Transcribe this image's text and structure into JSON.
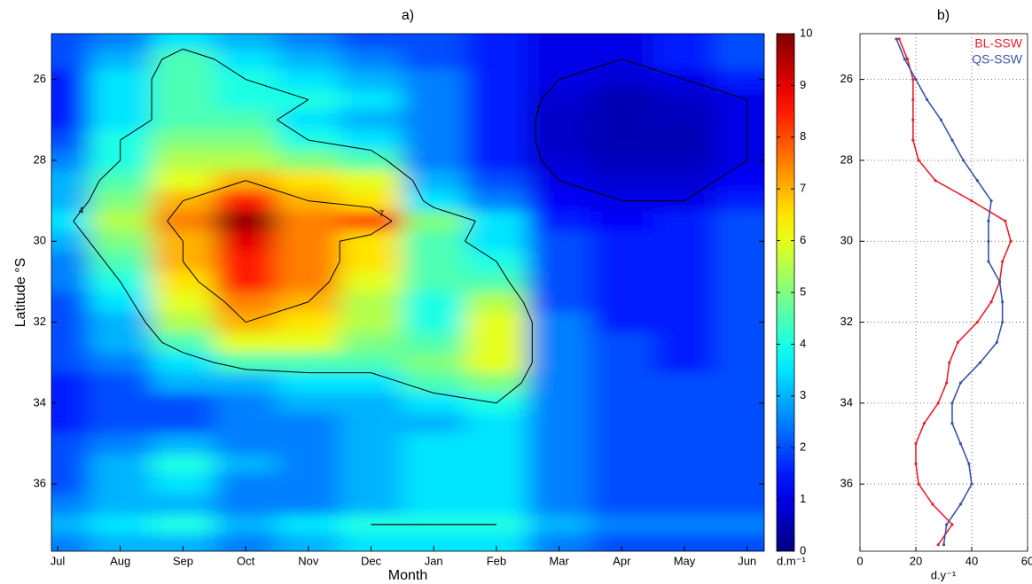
{
  "chart_data": [
    {
      "type": "heatmap",
      "title": "a)",
      "x_label": "Month",
      "y_label": "Latitude °S",
      "categories": [
        "Jul",
        "Aug",
        "Sep",
        "Oct",
        "Nov",
        "Dec",
        "Jan",
        "Feb",
        "Mar",
        "Apr",
        "May",
        "Jun"
      ],
      "y": [
        25,
        25.5,
        26,
        26.5,
        27,
        27.5,
        28,
        28.5,
        29,
        29.5,
        30,
        30.5,
        31,
        31.5,
        32,
        32.5,
        33,
        33.5,
        34,
        34.5,
        35,
        35.5,
        36,
        36.5,
        37,
        37.5
      ],
      "z": [
        [
          2,
          2.5,
          3.5,
          3,
          2.5,
          2,
          2,
          1.5,
          1,
          1,
          1.5,
          2
        ],
        [
          2,
          3,
          4.5,
          3.5,
          3,
          2.5,
          2,
          1.5,
          1,
          1,
          1.5,
          2
        ],
        [
          1.5,
          3.5,
          4.5,
          4,
          3.5,
          3,
          2.5,
          1.5,
          1,
          0.8,
          1,
          1.5
        ],
        [
          1.5,
          3.5,
          4.5,
          4,
          4,
          3.5,
          2.5,
          1.5,
          0.8,
          0.5,
          0.7,
          1
        ],
        [
          1.5,
          3.5,
          4.5,
          4.5,
          3.5,
          3,
          2.5,
          1.5,
          0.7,
          0.5,
          0.6,
          1
        ],
        [
          2,
          4,
          5,
          5,
          4,
          3.5,
          2.5,
          1.5,
          0.7,
          0.5,
          0.5,
          1
        ],
        [
          2.5,
          4,
          5.5,
          5.5,
          5,
          4.5,
          2.5,
          1.5,
          0.8,
          0.6,
          0.6,
          1
        ],
        [
          3,
          4.5,
          6,
          7,
          6.5,
          6,
          3,
          2,
          1,
          0.8,
          0.8,
          1.2
        ],
        [
          3,
          5,
          7,
          8.5,
          7,
          6.5,
          3.5,
          2.5,
          1.2,
          1,
          1,
          1.5
        ],
        [
          3.5,
          5.5,
          7.5,
          9.8,
          7.5,
          8,
          5,
          3.5,
          1.5,
          1.2,
          1.5,
          2
        ],
        [
          3,
          5,
          7,
          9,
          7.5,
          6.5,
          4.5,
          3.5,
          2,
          1.5,
          1.5,
          2
        ],
        [
          2.5,
          4.5,
          7,
          8.5,
          7.5,
          6.5,
          4.5,
          4,
          2,
          1.5,
          1.5,
          2
        ],
        [
          2.5,
          4,
          6.5,
          8.5,
          7.5,
          6,
          4.5,
          4.5,
          2,
          1.5,
          1.5,
          2
        ],
        [
          2,
          3.5,
          6,
          7.5,
          7,
          5.5,
          4,
          5.5,
          2,
          1.5,
          1.5,
          2
        ],
        [
          2,
          3,
          5.5,
          7,
          6.5,
          5.5,
          4,
          6,
          2.5,
          1.5,
          1.5,
          2
        ],
        [
          2,
          3,
          4.5,
          6,
          6,
          5,
          4.5,
          6,
          2.5,
          2,
          1.5,
          2
        ],
        [
          2,
          2.5,
          3.5,
          4.5,
          4.5,
          4.5,
          5,
          6,
          2.5,
          2,
          1.5,
          2
        ],
        [
          1.5,
          2,
          3,
          3,
          3.5,
          3.5,
          4.5,
          5,
          2.5,
          2,
          2,
          2
        ],
        [
          1.5,
          2,
          2,
          2.5,
          3,
          3,
          3.5,
          4,
          2.5,
          2,
          2,
          2
        ],
        [
          1.5,
          2,
          2,
          2.5,
          2.5,
          3,
          3,
          3.5,
          2.5,
          2,
          2,
          2
        ],
        [
          2,
          2.5,
          3,
          2.5,
          2.5,
          3,
          3.5,
          3.5,
          2.5,
          2,
          2,
          2
        ],
        [
          2,
          3,
          4,
          3,
          2.5,
          3,
          3.5,
          3.5,
          2.5,
          2,
          2,
          2
        ],
        [
          2,
          3,
          3.5,
          2.5,
          2.5,
          3,
          3.5,
          3.5,
          2.5,
          2,
          2,
          2
        ],
        [
          2.5,
          3,
          3,
          2.5,
          2.5,
          3,
          3.5,
          3.5,
          2.5,
          2,
          2,
          2
        ],
        [
          3,
          3.5,
          4,
          3,
          3.5,
          4,
          4,
          4,
          3,
          2.5,
          2.5,
          2.5
        ],
        [
          2.5,
          3,
          3,
          2.5,
          3,
          3.5,
          3.5,
          3.5,
          2.5,
          2,
          2,
          2
        ]
      ],
      "zlim": [
        0,
        10
      ],
      "zticks": [
        0,
        1,
        2,
        3,
        4,
        5,
        6,
        7,
        8,
        9,
        10
      ],
      "colorbar_label": "d.m⁻¹",
      "colormap": "jet",
      "contour_levels": [
        1,
        4,
        7
      ],
      "contour_color": "#000000",
      "ylim": [
        24.87,
        37.66
      ],
      "yticks": [
        26,
        28,
        30,
        32,
        34,
        36
      ]
    },
    {
      "type": "line",
      "orientation": "horizontal",
      "title": "b)",
      "x_label": "d.y⁻¹",
      "y": [
        25,
        25.5,
        26,
        26.5,
        27,
        27.5,
        28,
        28.5,
        29,
        29.5,
        30,
        30.5,
        31,
        31.5,
        32,
        32.5,
        33,
        33.5,
        34,
        34.5,
        35,
        35.5,
        36,
        36.5,
        37,
        37.5
      ],
      "series": [
        {
          "name": "BL-SSW",
          "color": "#e8212b",
          "values": [
            14,
            17,
            19,
            19,
            19,
            19,
            21,
            27,
            40,
            52,
            54,
            51,
            50,
            47,
            42,
            35,
            32,
            31,
            28,
            23,
            20,
            20,
            21,
            26,
            33,
            28
          ]
        },
        {
          "name": "QS-SSW",
          "color": "#3a55a4",
          "values": [
            13,
            16,
            20,
            24,
            29,
            33,
            37,
            42,
            47,
            46,
            46,
            46,
            50,
            51,
            51,
            49,
            43,
            36,
            33,
            33,
            36,
            39,
            40,
            36,
            31,
            30
          ]
        }
      ],
      "xlim": [
        0,
        60
      ],
      "xticks": [
        0,
        20,
        40,
        60
      ],
      "ylim": [
        24.87,
        37.66
      ],
      "yticks": [
        26,
        28,
        30,
        32,
        34,
        36
      ],
      "grid": true,
      "legend": "upper right"
    }
  ]
}
